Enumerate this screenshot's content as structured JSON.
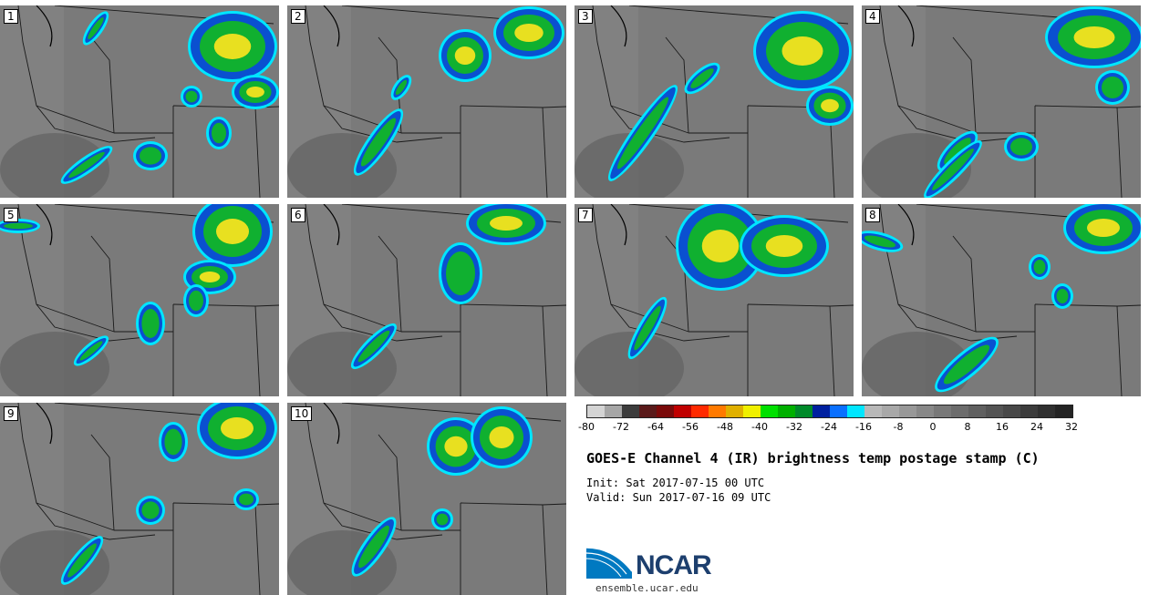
{
  "panels": [
    {
      "label": "1"
    },
    {
      "label": "2"
    },
    {
      "label": "3"
    },
    {
      "label": "4"
    },
    {
      "label": "5"
    },
    {
      "label": "6"
    },
    {
      "label": "7"
    },
    {
      "label": "8"
    },
    {
      "label": "9"
    },
    {
      "label": "10"
    }
  ],
  "legend": {
    "colors": [
      "#d4d4d4",
      "#a6a6a6",
      "#3c3c3c",
      "#5a1a1a",
      "#7a0a0a",
      "#c00000",
      "#ff2a00",
      "#ff7a00",
      "#e0b000",
      "#f0f000",
      "#00e000",
      "#00b000",
      "#008a2a",
      "#0020a0",
      "#0a70ff",
      "#00e6ff",
      "#b8b8b8",
      "#a8a8a8",
      "#989898",
      "#888888",
      "#787878",
      "#6c6c6c",
      "#606060",
      "#545454",
      "#484848",
      "#3c3c3c",
      "#303030",
      "#242424"
    ],
    "ticks": [
      "-80",
      "-72",
      "-64",
      "-56",
      "-48",
      "-40",
      "-32",
      "-24",
      "-16",
      "-8",
      "0",
      "8",
      "16",
      "24",
      "32"
    ]
  },
  "title": "GOES-E Channel 4 (IR) brightness temp postage stamp (C)",
  "init": "Init: Sat 2017-07-15 00 UTC",
  "valid": "Valid: Sun 2017-07-16 09 UTC",
  "logo": {
    "text": "NCAR",
    "site": "ensemble.ucar.edu",
    "colors": [
      "#0079c1",
      "#1d3f6e"
    ]
  }
}
